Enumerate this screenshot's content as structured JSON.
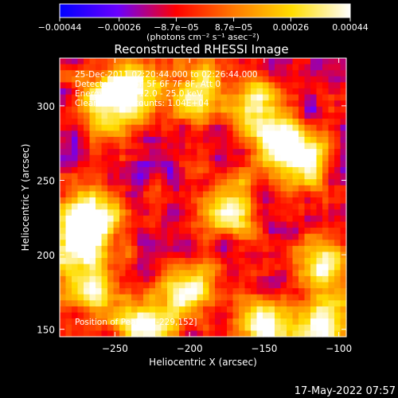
{
  "chart_data": {
    "type": "heatmap",
    "title": "Reconstructed RHESSI Image",
    "xlabel": "Heliocentric X (arcsec)",
    "ylabel": "Heliocentric Y (arcsec)",
    "xlim": [
      -287,
      -95
    ],
    "ylim": [
      145,
      332
    ],
    "x_ticks": [
      -250,
      -200,
      -150,
      -100
    ],
    "x_tick_labels": [
      "−250",
      "−200",
      "−150",
      "−100"
    ],
    "y_ticks": [
      150,
      200,
      250,
      300
    ],
    "y_tick_labels": [
      "150",
      "200",
      "250",
      "300"
    ],
    "colorbar": {
      "range": [
        -0.00044,
        0.00044
      ],
      "ticks": [
        -0.00044,
        -0.00026,
        -8.7e-05,
        8.7e-05,
        0.00026,
        0.00044
      ],
      "tick_labels": [
        "−0.00044",
        "−0.00026",
        "−8.7e−05",
        "8.7e−05",
        "0.00026",
        "0.00044"
      ],
      "units_label": "(photons cm⁻² s⁻¹ asec⁻²)",
      "colormap": [
        "#0000ff",
        "#6a00ff",
        "#ff0000",
        "#ff7a00",
        "#ffdd00",
        "#ffffff"
      ]
    },
    "annotations": [
      "25-Dec-2011 02:20:44.000 to 02:26:44.000",
      "Detectors: 3F 4F 5F 6F 7F 8F, Att 0",
      "Energy Range: 12.0 - 25.0 keV",
      "Clean     Total counts: 1.04E+04"
    ],
    "position_label": "Position of Peak = [-229,152]",
    "hot_spots": [
      {
        "x": -111,
        "y": 150,
        "v": 0.00044
      },
      {
        "x": -150,
        "y": 152,
        "v": 0.0004
      },
      {
        "x": -229,
        "y": 152,
        "v": 0.00044
      },
      {
        "x": -275,
        "y": 210,
        "v": 0.00042
      },
      {
        "x": -265,
        "y": 225,
        "v": 0.00034
      },
      {
        "x": -140,
        "y": 275,
        "v": 0.00038
      },
      {
        "x": -120,
        "y": 262,
        "v": 0.0003
      },
      {
        "x": -240,
        "y": 312,
        "v": 0.00036
      },
      {
        "x": -255,
        "y": 300,
        "v": 0.0003
      },
      {
        "x": -195,
        "y": 310,
        "v": 0.00026
      },
      {
        "x": -200,
        "y": 175,
        "v": 0.0003
      },
      {
        "x": -175,
        "y": 230,
        "v": 0.00032
      },
      {
        "x": -265,
        "y": 175,
        "v": 0.00028
      },
      {
        "x": -110,
        "y": 195,
        "v": 0.00026
      },
      {
        "x": -155,
        "y": 300,
        "v": 0.00022
      }
    ]
  },
  "footer": {
    "timestamp": "17-May-2022 07:57"
  }
}
